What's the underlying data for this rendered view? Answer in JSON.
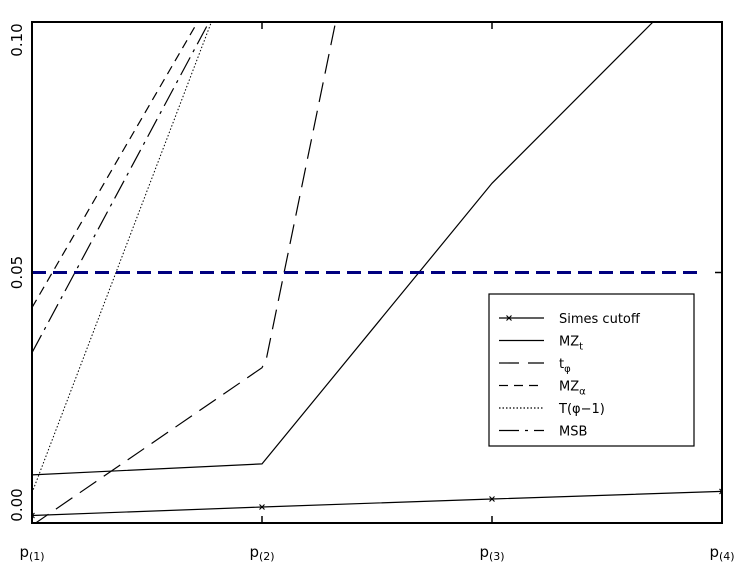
{
  "chart_data": {
    "type": "line",
    "title": "",
    "xlabel": "",
    "ylabel": "",
    "x": [
      1,
      2,
      3,
      4
    ],
    "x_tick_labels": [
      {
        "base": "p",
        "sub": "(1)"
      },
      {
        "base": "p",
        "sub": "(2)"
      },
      {
        "base": "p",
        "sub": "(3)"
      },
      {
        "base": "p",
        "sub": "(4)"
      }
    ],
    "ylim": [
      0.0,
      0.1
    ],
    "y_ticks": [
      0.0,
      0.05,
      0.1
    ],
    "y_tick_labels": [
      "0.00",
      "0.05",
      "0.10"
    ],
    "reference_line": {
      "y": 0.05,
      "color": "#00007f",
      "style": "dashed"
    },
    "legend_position": "right",
    "series": [
      {
        "name": "Simes cutoff",
        "legend": {
          "main": "Simes cutoff",
          "sub": ""
        },
        "dash": "solid",
        "marker": "x",
        "color": "#000000",
        "points": [
          [
            1,
            0.0015
          ],
          [
            2,
            0.0032
          ],
          [
            3,
            0.0048
          ],
          [
            4,
            0.0063
          ]
        ]
      },
      {
        "name": "MZt",
        "legend": {
          "main": "MZ",
          "sub": "t"
        },
        "dash": "solid",
        "marker": "none",
        "color": "#000000",
        "points": [
          [
            1,
            0.0096
          ],
          [
            2,
            0.0118
          ],
          [
            3,
            0.0678
          ],
          [
            3.7,
            0.1
          ]
        ]
      },
      {
        "name": "tφ",
        "legend": {
          "main": "t",
          "sub": "φ"
        },
        "dash": "longdash",
        "marker": "none",
        "color": "#000000",
        "points": [
          [
            1,
            -0.0005
          ],
          [
            2,
            0.031
          ],
          [
            2.02,
            0.033
          ],
          [
            2.32,
            0.1
          ]
        ]
      },
      {
        "name": "MZα",
        "legend": {
          "main": "MZ",
          "sub": "α"
        },
        "dash": "shortdash",
        "marker": "none",
        "color": "#000000",
        "points": [
          [
            1,
            0.043
          ],
          [
            1.72,
            0.1
          ]
        ]
      },
      {
        "name": "T(φ−1)",
        "legend": {
          "main": "T(φ−1)",
          "sub": ""
        },
        "dash": "dotted",
        "marker": "none",
        "color": "#000000",
        "points": [
          [
            1,
            0.006
          ],
          [
            1.78,
            0.1
          ]
        ]
      },
      {
        "name": "MSB",
        "legend": {
          "main": "MSB",
          "sub": ""
        },
        "dash": "dashdot",
        "marker": "none",
        "color": "#000000",
        "points": [
          [
            1,
            0.034
          ],
          [
            1.77,
            0.1
          ]
        ]
      }
    ]
  }
}
